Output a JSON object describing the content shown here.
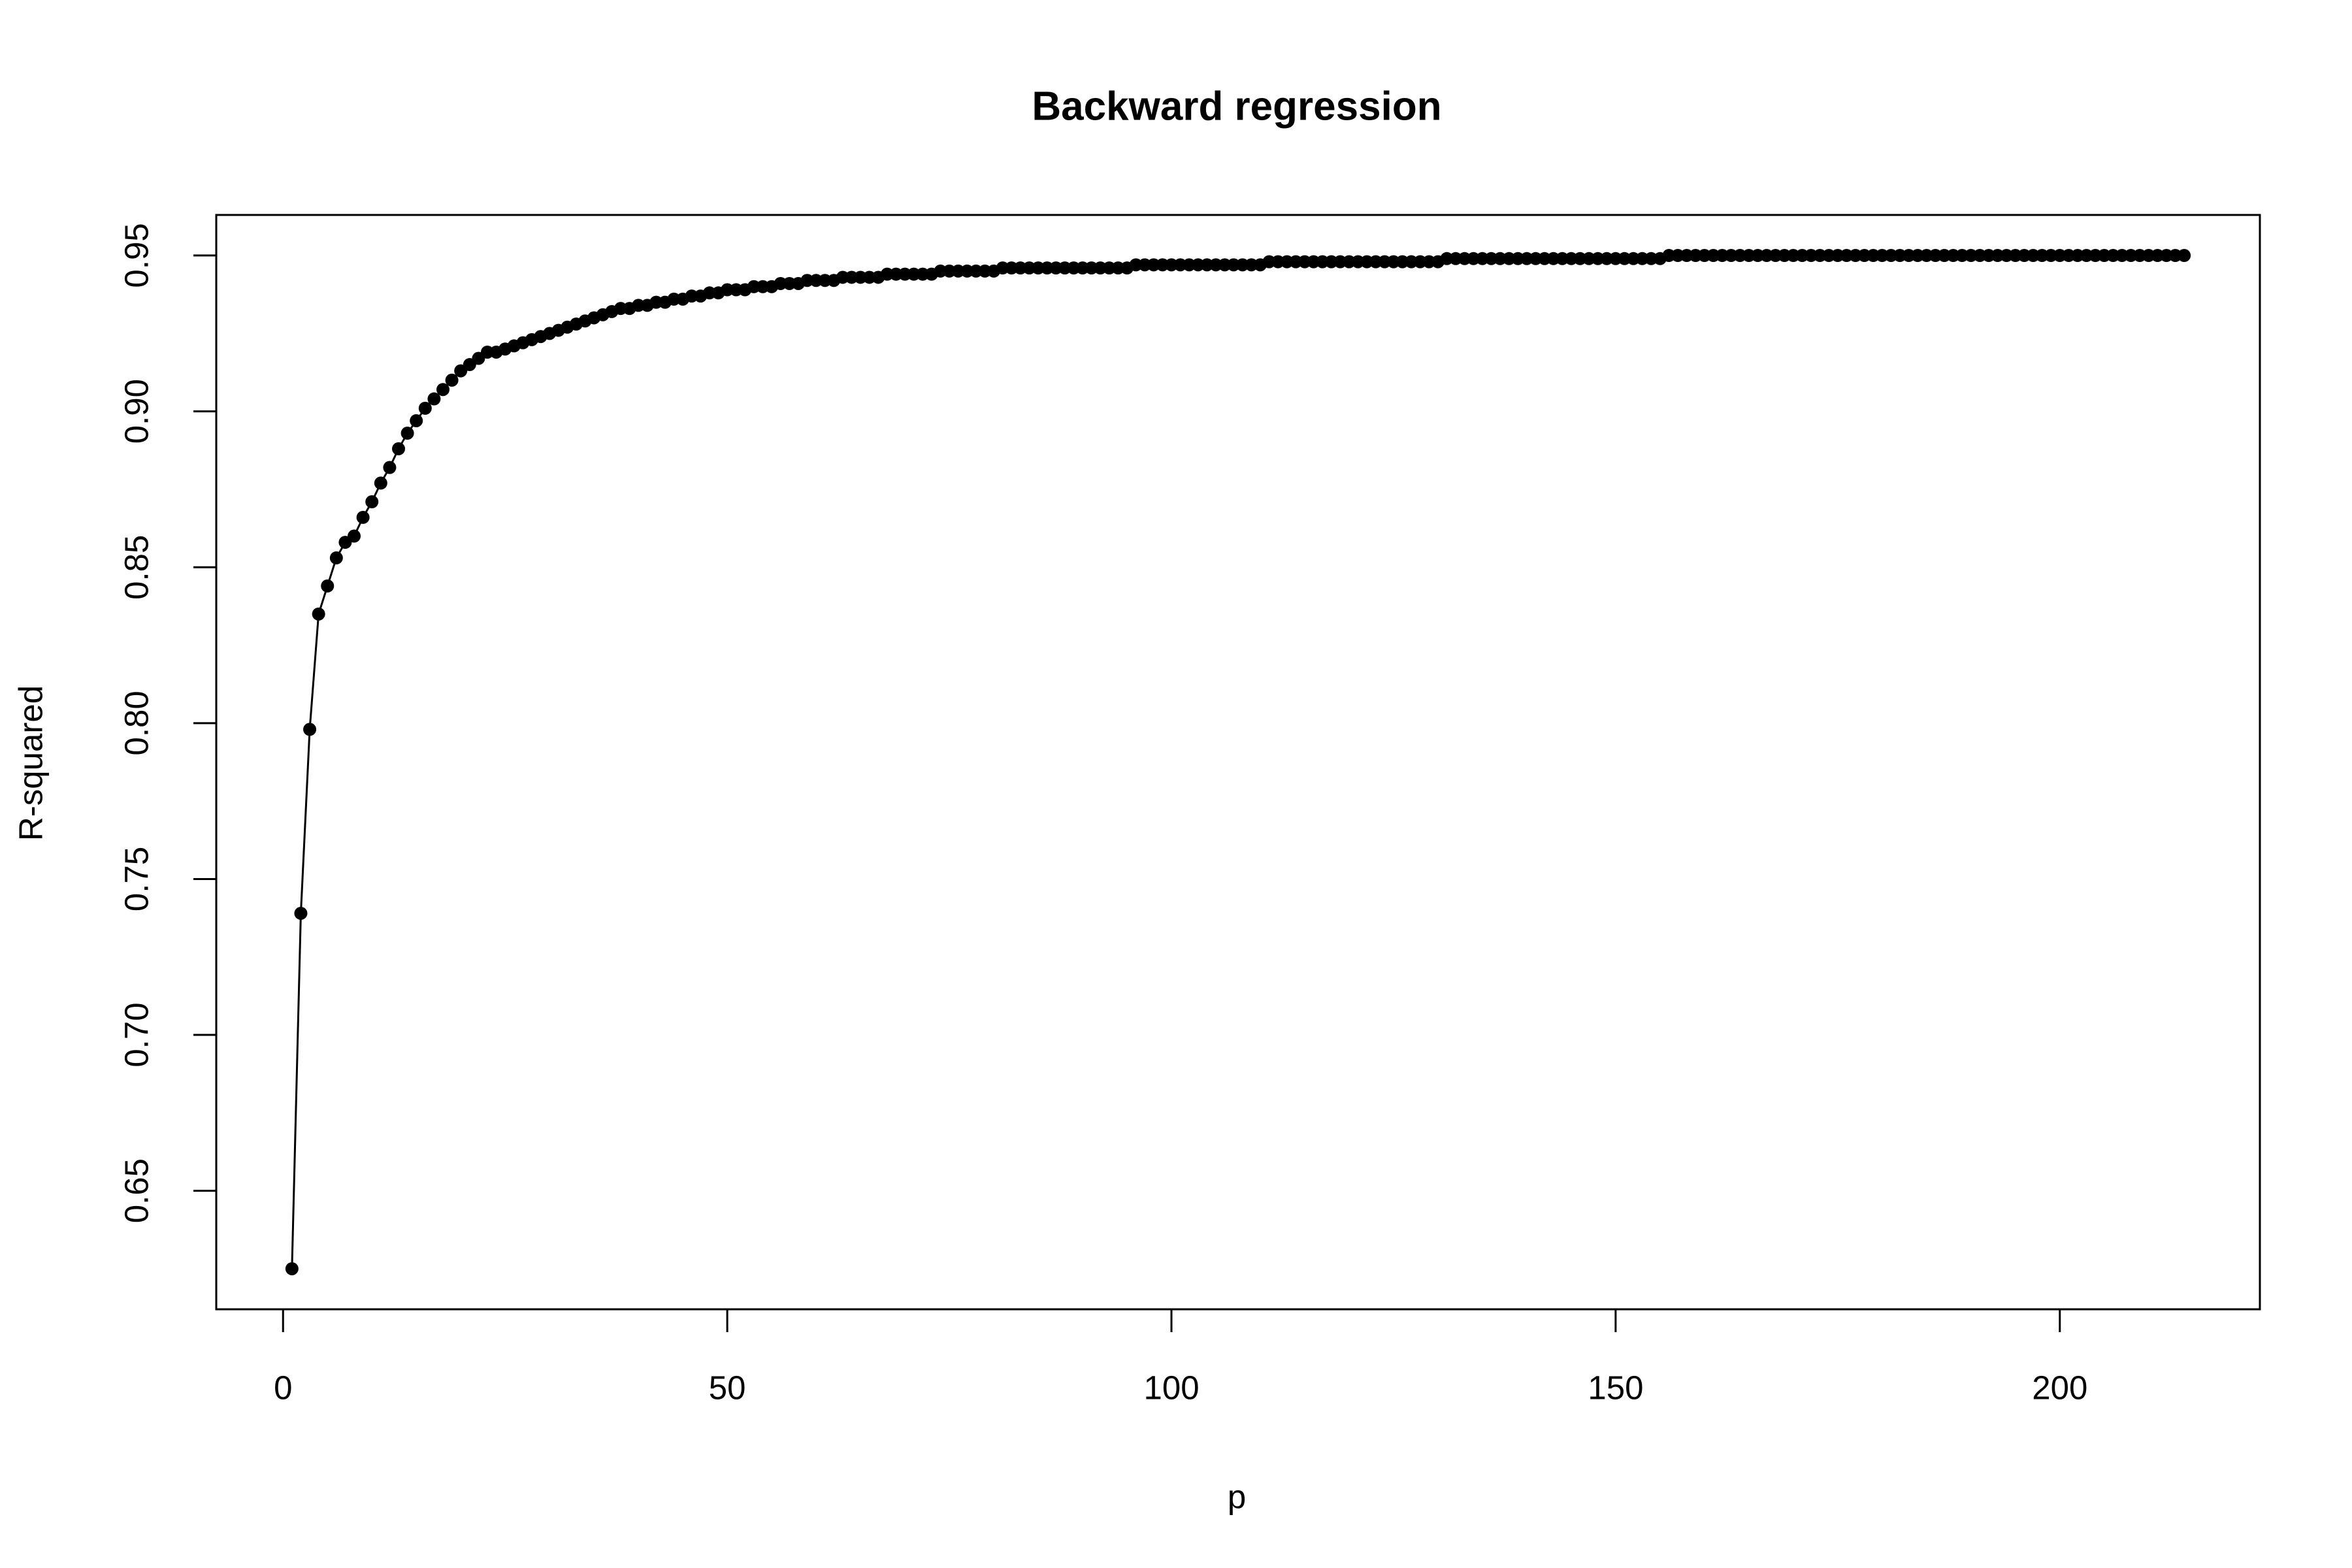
{
  "chart_data": {
    "type": "line",
    "marker": "circle",
    "color": "#000000",
    "title": "Backward regression",
    "x_label": "p",
    "y_label": "R-squared",
    "xlim": [
      -7.52,
      222.52
    ],
    "xticks": [
      0,
      50,
      100,
      150,
      200
    ],
    "ylim": [
      0.612,
      0.963
    ],
    "yticks": [
      0.65,
      {
        "value": 0.7,
        "label": "0.70"
      },
      0.75,
      {
        "value": 0.8,
        "label": "0.80"
      },
      0.85,
      {
        "value": 0.9,
        "label": "0.90"
      },
      0.95
    ],
    "x": [
      1,
      2,
      3,
      4,
      5,
      6,
      7,
      8,
      9,
      10,
      11,
      12,
      13,
      14,
      15,
      16,
      17,
      18,
      19,
      20,
      21,
      22,
      23,
      24,
      25,
      26,
      27,
      28,
      29,
      30,
      31,
      32,
      33,
      34,
      35,
      36,
      37,
      38,
      39,
      40,
      41,
      42,
      43,
      44,
      45,
      46,
      47,
      48,
      49,
      50,
      51,
      52,
      53,
      54,
      55,
      56,
      57,
      58,
      59,
      60,
      61,
      62,
      63,
      64,
      65,
      66,
      67,
      68,
      69,
      70,
      71,
      72,
      73,
      74,
      75,
      76,
      77,
      78,
      79,
      80,
      81,
      82,
      83,
      84,
      85,
      86,
      87,
      88,
      89,
      90,
      91,
      92,
      93,
      94,
      95,
      96,
      97,
      98,
      99,
      100,
      101,
      102,
      103,
      104,
      105,
      106,
      107,
      108,
      109,
      110,
      111,
      112,
      113,
      114,
      115,
      116,
      117,
      118,
      119,
      120,
      121,
      122,
      123,
      124,
      125,
      126,
      127,
      128,
      129,
      130,
      131,
      132,
      133,
      134,
      135,
      136,
      137,
      138,
      139,
      140,
      141,
      142,
      143,
      144,
      145,
      146,
      147,
      148,
      149,
      150,
      151,
      152,
      153,
      154,
      155,
      156,
      157,
      158,
      159,
      160,
      161,
      162,
      163,
      164,
      165,
      166,
      167,
      168,
      169,
      170,
      171,
      172,
      173,
      174,
      175,
      176,
      177,
      178,
      179,
      180,
      181,
      182,
      183,
      184,
      185,
      186,
      187,
      188,
      189,
      190,
      191,
      192,
      193,
      194,
      195,
      196,
      197,
      198,
      199,
      200,
      201,
      202,
      203,
      204,
      205,
      206,
      207,
      208,
      209,
      210,
      211,
      212,
      213,
      214
    ],
    "y": [
      0.625,
      0.739,
      0.798,
      0.835,
      0.844,
      0.853,
      0.858,
      0.86,
      0.866,
      0.871,
      0.877,
      0.882,
      0.888,
      0.893,
      0.897,
      0.901,
      0.904,
      0.907,
      0.91,
      0.913,
      0.915,
      0.917,
      0.919,
      0.919,
      0.92,
      0.921,
      0.922,
      0.923,
      0.924,
      0.925,
      0.926,
      0.927,
      0.928,
      0.929,
      0.93,
      0.931,
      0.932,
      0.933,
      0.933,
      0.934,
      0.934,
      0.935,
      0.935,
      0.936,
      0.936,
      0.937,
      0.937,
      0.938,
      0.938,
      0.939,
      0.939,
      0.939,
      0.94,
      0.94,
      0.94,
      0.941,
      0.941,
      0.941,
      0.942,
      0.942,
      0.942,
      0.942,
      0.943,
      0.943,
      0.943,
      0.943,
      0.943,
      0.944,
      0.944,
      0.944,
      0.944,
      0.944,
      0.944,
      0.945,
      0.945,
      0.945,
      0.945,
      0.945,
      0.945,
      0.945,
      0.946,
      0.946,
      0.946,
      0.946,
      0.946,
      0.946,
      0.946,
      0.946,
      0.946,
      0.946,
      0.946,
      0.946,
      0.946,
      0.946,
      0.946,
      0.947,
      0.947,
      0.947,
      0.947,
      0.947,
      0.947,
      0.947,
      0.947,
      0.947,
      0.947,
      0.947,
      0.947,
      0.947,
      0.947,
      0.947,
      0.948,
      0.948,
      0.948,
      0.948,
      0.948,
      0.948,
      0.948,
      0.948,
      0.948,
      0.948,
      0.948,
      0.948,
      0.948,
      0.948,
      0.948,
      0.948,
      0.948,
      0.948,
      0.948,
      0.948,
      0.949,
      0.949,
      0.949,
      0.949,
      0.949,
      0.949,
      0.949,
      0.949,
      0.949,
      0.949,
      0.949,
      0.949,
      0.949,
      0.949,
      0.949,
      0.949,
      0.949,
      0.949,
      0.949,
      0.949,
      0.949,
      0.949,
      0.949,
      0.949,
      0.949,
      0.95,
      0.95,
      0.95,
      0.95,
      0.95,
      0.95,
      0.95,
      0.95,
      0.95,
      0.95,
      0.95,
      0.95,
      0.95,
      0.95,
      0.95,
      0.95,
      0.95,
      0.95,
      0.95,
      0.95,
      0.95,
      0.95,
      0.95,
      0.95,
      0.95,
      0.95,
      0.95,
      0.95,
      0.95,
      0.95,
      0.95,
      0.95,
      0.95,
      0.95,
      0.95,
      0.95,
      0.95,
      0.95,
      0.95,
      0.95,
      0.95,
      0.95,
      0.95,
      0.95,
      0.95,
      0.95,
      0.95,
      0.95,
      0.95,
      0.95,
      0.95,
      0.95,
      0.95,
      0.95,
      0.95,
      0.95,
      0.95,
      0.95,
      0.95
    ]
  }
}
